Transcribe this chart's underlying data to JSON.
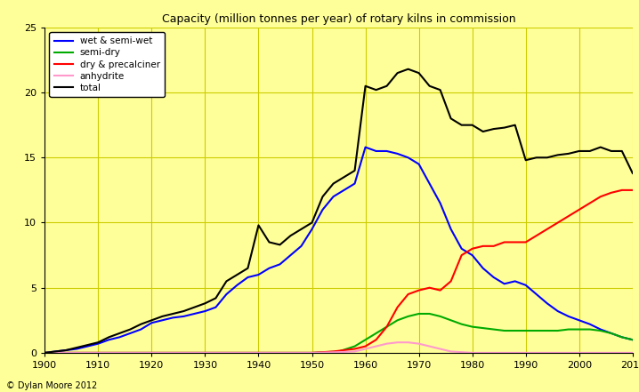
{
  "title": "Capacity (million tonnes per year) of rotary kilns in commission",
  "background_color": "#FFFF99",
  "grid_color": "#CCCC00",
  "xlim": [
    1900,
    2010
  ],
  "ylim": [
    0,
    25
  ],
  "yticks": [
    0,
    5,
    10,
    15,
    20,
    25
  ],
  "xticks": [
    1900,
    1910,
    1920,
    1930,
    1940,
    1950,
    1960,
    1970,
    1980,
    1990,
    2000,
    2010
  ],
  "copyright": "© Dylan Moore 2012",
  "series": {
    "wet_semi_wet": {
      "label": "wet & semi-wet",
      "color": "#0000FF",
      "data": [
        [
          1900,
          0.0
        ],
        [
          1902,
          0.1
        ],
        [
          1904,
          0.2
        ],
        [
          1906,
          0.3
        ],
        [
          1908,
          0.5
        ],
        [
          1910,
          0.7
        ],
        [
          1912,
          1.0
        ],
        [
          1914,
          1.2
        ],
        [
          1916,
          1.5
        ],
        [
          1918,
          1.8
        ],
        [
          1920,
          2.3
        ],
        [
          1922,
          2.5
        ],
        [
          1924,
          2.7
        ],
        [
          1926,
          2.8
        ],
        [
          1928,
          3.0
        ],
        [
          1930,
          3.2
        ],
        [
          1932,
          3.5
        ],
        [
          1934,
          4.5
        ],
        [
          1936,
          5.2
        ],
        [
          1938,
          5.8
        ],
        [
          1940,
          6.0
        ],
        [
          1942,
          6.5
        ],
        [
          1944,
          6.8
        ],
        [
          1946,
          7.5
        ],
        [
          1948,
          8.2
        ],
        [
          1950,
          9.5
        ],
        [
          1952,
          11.0
        ],
        [
          1954,
          12.0
        ],
        [
          1956,
          12.5
        ],
        [
          1958,
          13.0
        ],
        [
          1960,
          15.8
        ],
        [
          1962,
          15.5
        ],
        [
          1964,
          15.5
        ],
        [
          1966,
          15.3
        ],
        [
          1968,
          15.0
        ],
        [
          1970,
          14.5
        ],
        [
          1972,
          13.0
        ],
        [
          1974,
          11.5
        ],
        [
          1976,
          9.5
        ],
        [
          1978,
          8.0
        ],
        [
          1980,
          7.5
        ],
        [
          1982,
          6.5
        ],
        [
          1984,
          5.8
        ],
        [
          1986,
          5.3
        ],
        [
          1988,
          5.5
        ],
        [
          1990,
          5.2
        ],
        [
          1992,
          4.5
        ],
        [
          1994,
          3.8
        ],
        [
          1996,
          3.2
        ],
        [
          1998,
          2.8
        ],
        [
          2000,
          2.5
        ],
        [
          2002,
          2.2
        ],
        [
          2004,
          1.8
        ],
        [
          2006,
          1.5
        ],
        [
          2008,
          1.2
        ],
        [
          2010,
          1.0
        ]
      ]
    },
    "semi_dry": {
      "label": "semi-dry",
      "color": "#00AA00",
      "data": [
        [
          1900,
          0.0
        ],
        [
          1910,
          0.0
        ],
        [
          1920,
          0.0
        ],
        [
          1930,
          0.0
        ],
        [
          1940,
          0.0
        ],
        [
          1950,
          0.0
        ],
        [
          1955,
          0.1
        ],
        [
          1958,
          0.5
        ],
        [
          1960,
          1.0
        ],
        [
          1962,
          1.5
        ],
        [
          1964,
          2.0
        ],
        [
          1966,
          2.5
        ],
        [
          1968,
          2.8
        ],
        [
          1970,
          3.0
        ],
        [
          1972,
          3.0
        ],
        [
          1974,
          2.8
        ],
        [
          1976,
          2.5
        ],
        [
          1978,
          2.2
        ],
        [
          1980,
          2.0
        ],
        [
          1982,
          1.9
        ],
        [
          1984,
          1.8
        ],
        [
          1986,
          1.7
        ],
        [
          1988,
          1.7
        ],
        [
          1990,
          1.7
        ],
        [
          1992,
          1.7
        ],
        [
          1994,
          1.7
        ],
        [
          1996,
          1.7
        ],
        [
          1998,
          1.8
        ],
        [
          2000,
          1.8
        ],
        [
          2002,
          1.8
        ],
        [
          2004,
          1.7
        ],
        [
          2006,
          1.5
        ],
        [
          2008,
          1.2
        ],
        [
          2010,
          1.0
        ]
      ]
    },
    "dry_precalciner": {
      "label": "dry & precalciner",
      "color": "#FF0000",
      "data": [
        [
          1900,
          0.0
        ],
        [
          1910,
          0.0
        ],
        [
          1920,
          0.0
        ],
        [
          1930,
          0.0
        ],
        [
          1940,
          0.0
        ],
        [
          1950,
          0.0
        ],
        [
          1952,
          0.05
        ],
        [
          1954,
          0.1
        ],
        [
          1956,
          0.2
        ],
        [
          1958,
          0.3
        ],
        [
          1960,
          0.5
        ],
        [
          1962,
          1.0
        ],
        [
          1964,
          2.0
        ],
        [
          1966,
          3.5
        ],
        [
          1968,
          4.5
        ],
        [
          1970,
          4.8
        ],
        [
          1972,
          5.0
        ],
        [
          1974,
          4.8
        ],
        [
          1976,
          5.5
        ],
        [
          1978,
          7.5
        ],
        [
          1980,
          8.0
        ],
        [
          1982,
          8.2
        ],
        [
          1984,
          8.2
        ],
        [
          1986,
          8.5
        ],
        [
          1988,
          8.5
        ],
        [
          1990,
          8.5
        ],
        [
          1992,
          9.0
        ],
        [
          1994,
          9.5
        ],
        [
          1996,
          10.0
        ],
        [
          1998,
          10.5
        ],
        [
          2000,
          11.0
        ],
        [
          2002,
          11.5
        ],
        [
          2004,
          12.0
        ],
        [
          2006,
          12.3
        ],
        [
          2008,
          12.5
        ],
        [
          2010,
          12.5
        ]
      ]
    },
    "anhydrite": {
      "label": "anhydrite",
      "color": "#FF99CC",
      "data": [
        [
          1900,
          0.0
        ],
        [
          1910,
          0.0
        ],
        [
          1920,
          0.0
        ],
        [
          1930,
          0.0
        ],
        [
          1940,
          0.0
        ],
        [
          1950,
          0.0
        ],
        [
          1955,
          0.05
        ],
        [
          1958,
          0.1
        ],
        [
          1960,
          0.3
        ],
        [
          1962,
          0.5
        ],
        [
          1964,
          0.7
        ],
        [
          1966,
          0.8
        ],
        [
          1968,
          0.8
        ],
        [
          1970,
          0.7
        ],
        [
          1972,
          0.5
        ],
        [
          1974,
          0.3
        ],
        [
          1976,
          0.1
        ],
        [
          1978,
          0.05
        ],
        [
          1980,
          0.0
        ],
        [
          1990,
          0.0
        ],
        [
          2000,
          0.0
        ],
        [
          2010,
          0.0
        ]
      ]
    },
    "total": {
      "label": "total",
      "color": "#000000",
      "data": [
        [
          1900,
          0.0
        ],
        [
          1902,
          0.1
        ],
        [
          1904,
          0.2
        ],
        [
          1906,
          0.4
        ],
        [
          1908,
          0.6
        ],
        [
          1910,
          0.8
        ],
        [
          1912,
          1.2
        ],
        [
          1914,
          1.5
        ],
        [
          1916,
          1.8
        ],
        [
          1918,
          2.2
        ],
        [
          1920,
          2.5
        ],
        [
          1922,
          2.8
        ],
        [
          1924,
          3.0
        ],
        [
          1926,
          3.2
        ],
        [
          1928,
          3.5
        ],
        [
          1930,
          3.8
        ],
        [
          1932,
          4.2
        ],
        [
          1934,
          5.5
        ],
        [
          1936,
          6.0
        ],
        [
          1938,
          6.5
        ],
        [
          1940,
          9.8
        ],
        [
          1942,
          8.5
        ],
        [
          1944,
          8.3
        ],
        [
          1946,
          9.0
        ],
        [
          1948,
          9.5
        ],
        [
          1950,
          10.0
        ],
        [
          1952,
          12.0
        ],
        [
          1954,
          13.0
        ],
        [
          1956,
          13.5
        ],
        [
          1958,
          14.0
        ],
        [
          1960,
          20.5
        ],
        [
          1962,
          20.2
        ],
        [
          1964,
          20.5
        ],
        [
          1966,
          21.5
        ],
        [
          1968,
          21.8
        ],
        [
          1970,
          21.5
        ],
        [
          1972,
          20.5
        ],
        [
          1974,
          20.2
        ],
        [
          1976,
          18.0
        ],
        [
          1978,
          17.5
        ],
        [
          1980,
          17.5
        ],
        [
          1982,
          17.0
        ],
        [
          1984,
          17.2
        ],
        [
          1986,
          17.3
        ],
        [
          1988,
          17.5
        ],
        [
          1990,
          14.8
        ],
        [
          1992,
          15.0
        ],
        [
          1994,
          15.0
        ],
        [
          1996,
          15.2
        ],
        [
          1998,
          15.3
        ],
        [
          2000,
          15.5
        ],
        [
          2002,
          15.5
        ],
        [
          2004,
          15.8
        ],
        [
          2006,
          15.5
        ],
        [
          2008,
          15.5
        ],
        [
          2010,
          13.8
        ]
      ]
    }
  }
}
